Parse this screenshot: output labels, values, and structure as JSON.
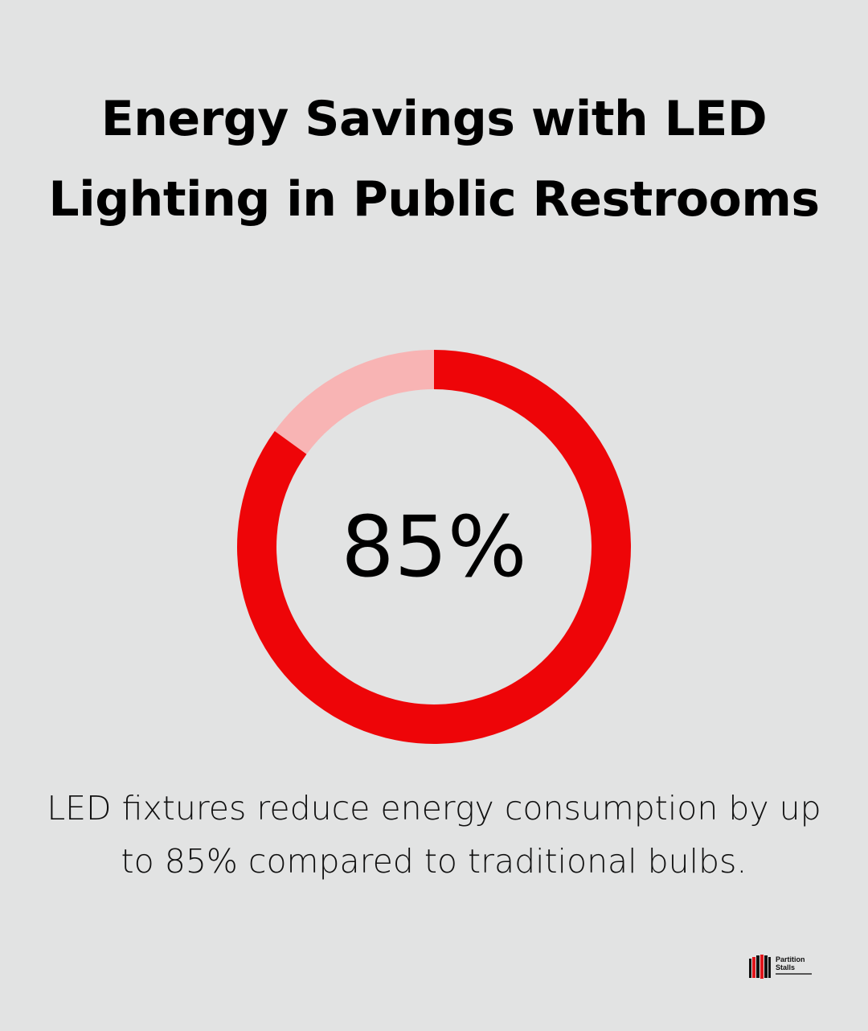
{
  "title": "Energy Savings with LED Lighting in Public Restrooms",
  "caption": "LED fixtures reduce energy consumption by up to 85% compared to traditional bulbs.",
  "logo": {
    "line1": "Partition",
    "line2": "Stalls"
  },
  "colors": {
    "background": "#e2e3e3",
    "accent": "#ee0508",
    "remainder": "#f8b4b4",
    "text": "#000000"
  },
  "chart_data": {
    "type": "pie",
    "variant": "donut",
    "value_percent": 85,
    "label": "85%",
    "slices": [
      {
        "value": 85,
        "color": "#ee0508"
      },
      {
        "value": 15,
        "color": "#f8b4b4"
      }
    ]
  }
}
